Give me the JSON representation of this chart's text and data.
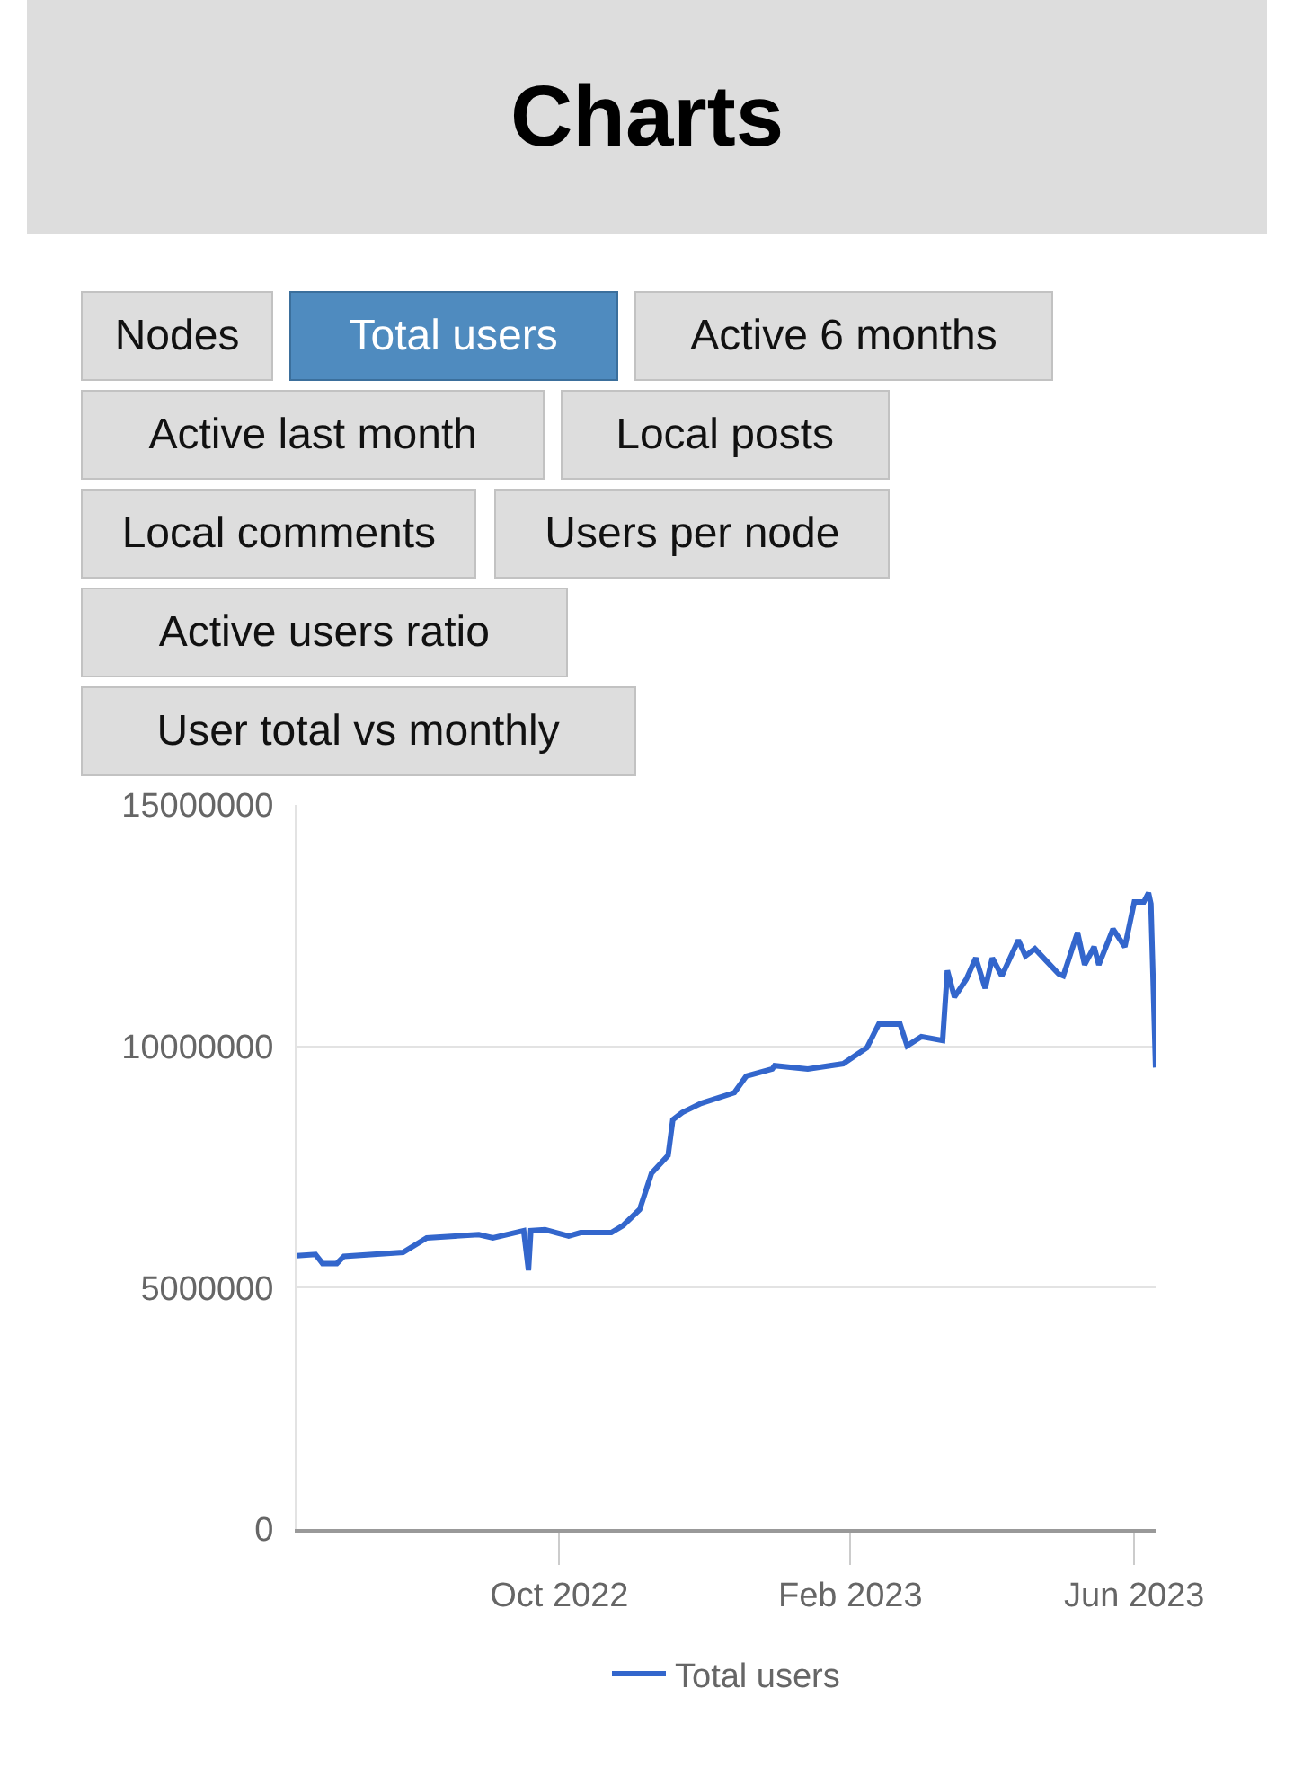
{
  "chart_data": {
    "type": "line",
    "title": "Charts",
    "annotations": [
      "Nodes",
      "Total users",
      "Active 6 months",
      "Active last month",
      "Local posts",
      "Local comments",
      "Users per node",
      "Active users ratio",
      "User total vs monthly"
    ],
    "x": [
      "2022-06-12",
      "2022-06-20",
      "2022-06-23",
      "2022-06-29",
      "2022-07-02",
      "2022-07-27",
      "2022-08-06",
      "2022-08-28",
      "2022-09-03",
      "2022-09-16",
      "2022-09-18",
      "2022-09-19",
      "2022-09-25",
      "2022-10-05",
      "2022-10-10",
      "2022-10-23",
      "2022-10-28",
      "2022-11-04",
      "2022-11-09",
      "2022-11-16",
      "2022-11-18",
      "2022-11-22",
      "2022-11-30",
      "2022-12-14",
      "2022-12-19",
      "2022-12-30",
      "2022-12-31",
      "2023-01-14",
      "2023-01-29",
      "2023-02-08",
      "2023-02-13",
      "2023-02-22",
      "2023-02-25",
      "2023-03-03",
      "2023-03-12",
      "2023-03-14",
      "2023-03-17",
      "2023-03-22",
      "2023-03-26",
      "2023-03-30",
      "2023-04-02",
      "2023-04-06",
      "2023-04-13",
      "2023-04-16",
      "2023-04-20",
      "2023-04-25",
      "2023-04-30",
      "2023-05-02",
      "2023-05-08",
      "2023-05-11",
      "2023-05-15",
      "2023-05-17",
      "2023-05-23",
      "2023-05-28",
      "2023-06-01",
      "2023-06-05",
      "2023-06-07",
      "2023-06-08",
      "2023-06-10"
    ],
    "series": [
      {
        "name": "Total users",
        "color": "#3366cc",
        "values": [
          5660000,
          5690000,
          5500000,
          5500000,
          5650000,
          5730000,
          6030000,
          6100000,
          6030000,
          6180000,
          5360000,
          6180000,
          6200000,
          6070000,
          6140000,
          6140000,
          6290000,
          6620000,
          7370000,
          7740000,
          8480000,
          8630000,
          8820000,
          9040000,
          9380000,
          9530000,
          9600000,
          9530000,
          9640000,
          9970000,
          10460000,
          10460000,
          10010000,
          10200000,
          10120000,
          11570000,
          11020000,
          11390000,
          11830000,
          11200000,
          11830000,
          11460000,
          12200000,
          11870000,
          12020000,
          11760000,
          11500000,
          11460000,
          12360000,
          11690000,
          12060000,
          11690000,
          12430000,
          12060000,
          12990000,
          12990000,
          13180000,
          12950000,
          9560000
        ]
      }
    ],
    "xlim": [
      "2022-06-12",
      "2023-06-10"
    ],
    "xticks": [
      {
        "value": "2022-10-01",
        "label": "Oct 2022"
      },
      {
        "value": "2023-02-01",
        "label": "Feb 2023"
      },
      {
        "value": "2023-06-01",
        "label": "Jun 2023"
      }
    ],
    "ylim": [
      0,
      15000000
    ],
    "yticks": [
      0,
      5000000,
      10000000,
      15000000
    ],
    "grid": "y",
    "legend": "bottom",
    "marker": "none",
    "line_style": "solid"
  }
}
